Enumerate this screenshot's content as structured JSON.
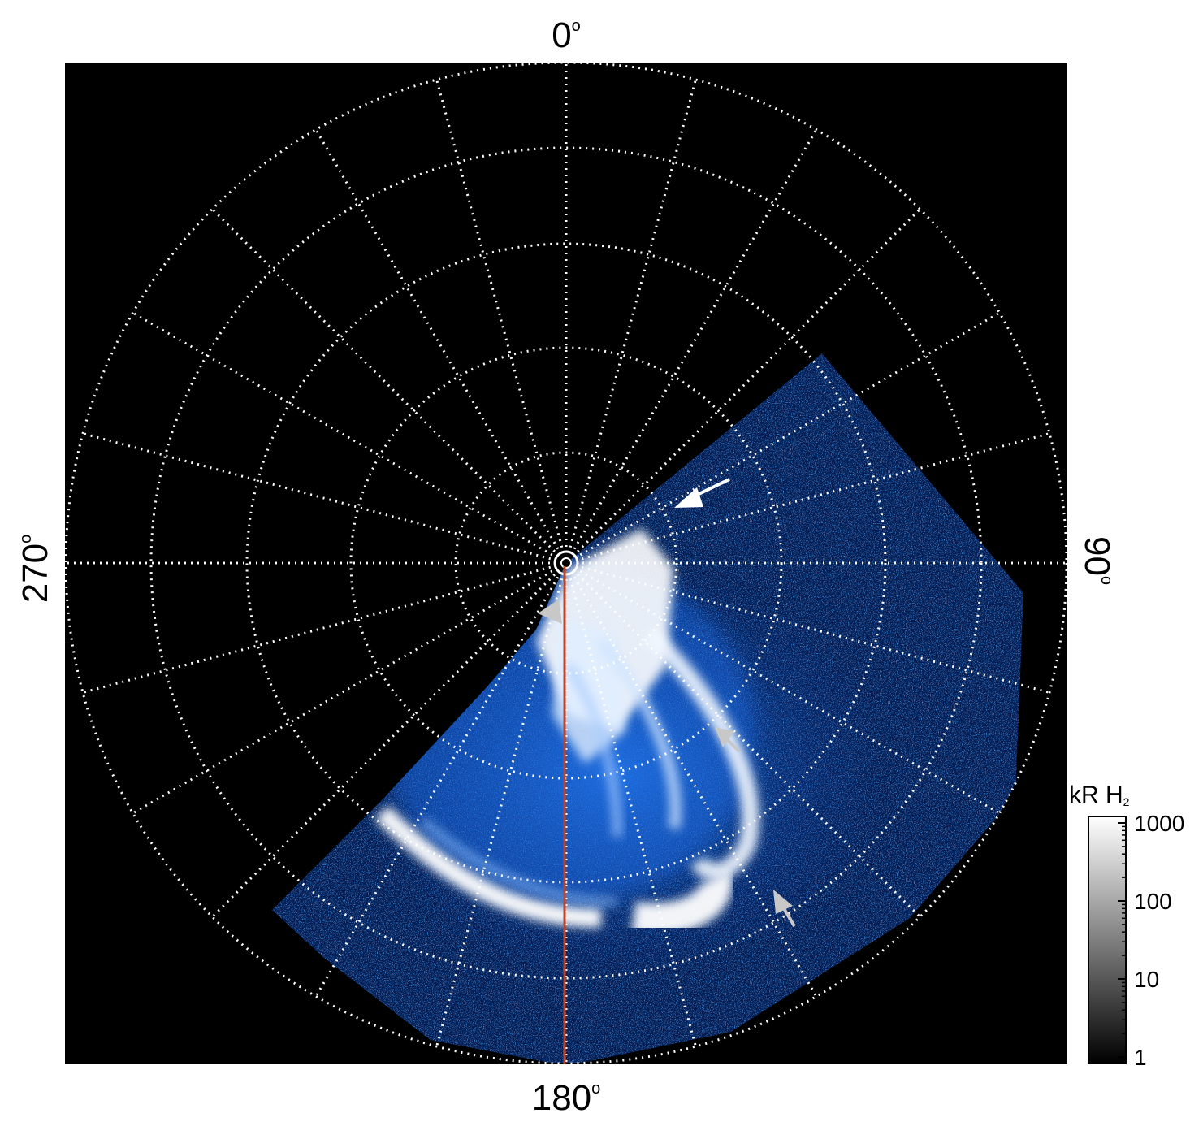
{
  "polar_map": {
    "labels": {
      "top": "0",
      "right": "90",
      "bottom": "180",
      "left": "270",
      "degree_symbol": "o"
    },
    "colorbar": {
      "title_main": "kR H",
      "title_sub": "2",
      "ticks": [
        {
          "label": "1000",
          "value": 1000
        },
        {
          "label": "100",
          "value": 100
        },
        {
          "label": "10",
          "value": 10
        },
        {
          "label": "1",
          "value": 1
        }
      ]
    },
    "colors": {
      "background": "#000000",
      "grid": "#ffffff",
      "aurora_dim": "#0a3fb0",
      "aurora_mid": "#1e7bff",
      "aurora_bright": "#ffffff",
      "meridian_line": "#c8401e",
      "arrow_primary": "#ffffff",
      "arrow_secondary": "#c8c8c8"
    },
    "meridian_longitude_deg": 180
  }
}
